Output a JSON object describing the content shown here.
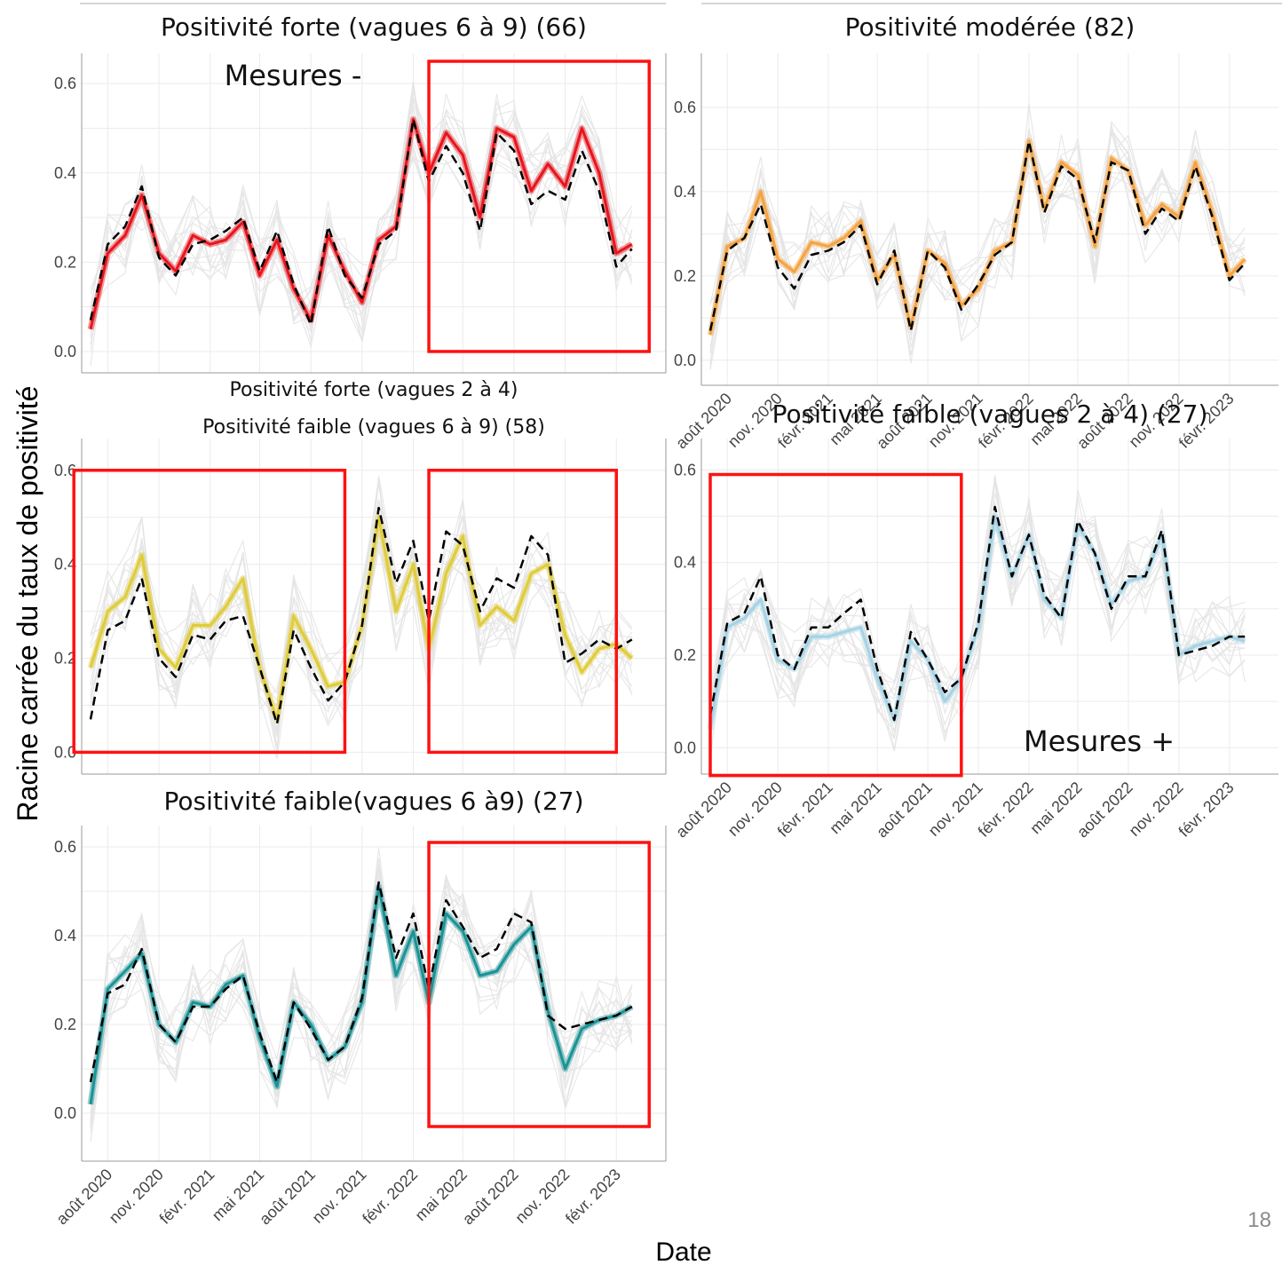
{
  "figure": {
    "y_label": "Racine carrée du taux de positivité",
    "x_label": "Date",
    "page_number": "18"
  },
  "chart_data": [
    {
      "type": "line",
      "title": "Positivité forte (vagues 6 à 9) (66)",
      "annotation": "Mesures -",
      "color": "#e8141c",
      "ylim": [
        -0.02,
        0.66
      ],
      "yticks": [
        "0.0",
        "0.2",
        "0.4",
        "0.6"
      ],
      "show_x_tick_labels": false,
      "highlight_boxes": [
        {
          "x0": "2022-03",
          "x1": "2023-04",
          "y0": 0.0,
          "y1": 0.65
        }
      ],
      "series": [
        {
          "x": [
            "2020-07-01",
            "2020-08-01",
            "2020-09-01",
            "2020-10-01",
            "2020-11-01",
            "2020-12-01",
            "2021-01-01",
            "2021-02-01",
            "2021-03-01",
            "2021-04-01",
            "2021-05-01",
            "2021-06-01",
            "2021-07-01",
            "2021-08-01",
            "2021-09-01",
            "2021-10-01",
            "2021-11-01",
            "2021-12-01",
            "2022-01-01",
            "2022-02-01",
            "2022-03-01",
            "2022-04-01",
            "2022-05-01",
            "2022-06-01",
            "2022-07-01",
            "2022-08-01",
            "2022-09-01",
            "2022-10-01",
            "2022-11-01",
            "2022-12-01",
            "2023-01-01",
            "2023-02-01",
            "2023-03-01"
          ],
          "y": [
            0.05,
            0.22,
            0.26,
            0.35,
            0.22,
            0.18,
            0.26,
            0.24,
            0.25,
            0.29,
            0.17,
            0.25,
            0.14,
            0.07,
            0.26,
            0.18,
            0.11,
            0.25,
            0.28,
            0.52,
            0.4,
            0.49,
            0.44,
            0.3,
            0.5,
            0.48,
            0.36,
            0.42,
            0.37,
            0.5,
            0.4,
            0.22,
            0.24
          ]
        },
        {
          "name": "",
          "dashed": true,
          "x": [
            "2020-07-01",
            "2020-08-01",
            "2020-09-01",
            "2020-10-01",
            "2020-11-01",
            "2020-12-01",
            "2021-01-01",
            "2021-02-01",
            "2021-03-01",
            "2021-04-01",
            "2021-05-01",
            "2021-06-01",
            "2021-07-01",
            "2021-08-01",
            "2021-09-01",
            "2021-10-01",
            "2021-11-01",
            "2021-12-01",
            "2022-01-01",
            "2022-02-01",
            "2022-03-01",
            "2022-04-01",
            "2022-05-01",
            "2022-06-01",
            "2022-07-01",
            "2022-08-01",
            "2022-09-01",
            "2022-10-01",
            "2022-11-01",
            "2022-12-01",
            "2023-01-01",
            "2023-02-01",
            "2023-03-01"
          ],
          "y": [
            0.07,
            0.24,
            0.28,
            0.37,
            0.21,
            0.17,
            0.24,
            0.25,
            0.27,
            0.3,
            0.18,
            0.27,
            0.15,
            0.06,
            0.28,
            0.17,
            0.12,
            0.24,
            0.27,
            0.52,
            0.38,
            0.46,
            0.4,
            0.27,
            0.49,
            0.45,
            0.33,
            0.36,
            0.34,
            0.45,
            0.36,
            0.19,
            0.23
          ]
        }
      ]
    },
    {
      "type": "line",
      "title": "Positivité modérée (82)",
      "color": "#f5a341",
      "ylim": [
        -0.03,
        0.72
      ],
      "yticks": [
        "0.0",
        "0.2",
        "0.4",
        "0.6"
      ],
      "show_x_tick_labels": true,
      "xtick_labels": [
        "août 2020",
        "nov. 2020",
        "févr. 2021",
        "mai 2021",
        "août 2021",
        "nov. 2021",
        "févr. 2022",
        "mai 2022",
        "août 2022",
        "nov. 2022",
        "févr. 2023"
      ],
      "series": [
        {
          "x": [
            "2020-07-01",
            "2020-08-01",
            "2020-09-01",
            "2020-10-01",
            "2020-11-01",
            "2020-12-01",
            "2021-01-01",
            "2021-02-01",
            "2021-03-01",
            "2021-04-01",
            "2021-05-01",
            "2021-06-01",
            "2021-07-01",
            "2021-08-01",
            "2021-09-01",
            "2021-10-01",
            "2021-11-01",
            "2021-12-01",
            "2022-01-01",
            "2022-02-01",
            "2022-03-01",
            "2022-04-01",
            "2022-05-01",
            "2022-06-01",
            "2022-07-01",
            "2022-08-01",
            "2022-09-01",
            "2022-10-01",
            "2022-11-01",
            "2022-12-01",
            "2023-01-01",
            "2023-02-01",
            "2023-03-01"
          ],
          "y": [
            0.06,
            0.27,
            0.29,
            0.4,
            0.24,
            0.21,
            0.28,
            0.27,
            0.29,
            0.33,
            0.19,
            0.25,
            0.08,
            0.26,
            0.23,
            0.13,
            0.17,
            0.26,
            0.28,
            0.52,
            0.36,
            0.47,
            0.44,
            0.27,
            0.48,
            0.45,
            0.32,
            0.37,
            0.34,
            0.47,
            0.35,
            0.2,
            0.24
          ]
        },
        {
          "dashed": true,
          "x": [
            "2020-07-01",
            "2020-08-01",
            "2020-09-01",
            "2020-10-01",
            "2020-11-01",
            "2020-12-01",
            "2021-01-01",
            "2021-02-01",
            "2021-03-01",
            "2021-04-01",
            "2021-05-01",
            "2021-06-01",
            "2021-07-01",
            "2021-08-01",
            "2021-09-01",
            "2021-10-01",
            "2021-11-01",
            "2021-12-01",
            "2022-01-01",
            "2022-02-01",
            "2022-03-01",
            "2022-04-01",
            "2022-05-01",
            "2022-06-01",
            "2022-07-01",
            "2022-08-01",
            "2022-09-01",
            "2022-10-01",
            "2022-11-01",
            "2022-12-01",
            "2023-01-01",
            "2023-02-01",
            "2023-03-01"
          ],
          "y": [
            0.07,
            0.26,
            0.29,
            0.37,
            0.22,
            0.17,
            0.25,
            0.26,
            0.28,
            0.32,
            0.18,
            0.26,
            0.07,
            0.26,
            0.22,
            0.12,
            0.18,
            0.25,
            0.28,
            0.52,
            0.35,
            0.46,
            0.43,
            0.28,
            0.47,
            0.45,
            0.3,
            0.36,
            0.33,
            0.46,
            0.34,
            0.19,
            0.23
          ]
        }
      ]
    },
    {
      "type": "line",
      "title": "Positivité forte (vagues 2 à 4)",
      "subtitle": "Positivité faible (vagues 6 à 9) (58)",
      "color": "#dfcc3b",
      "ylim": [
        -0.02,
        0.66
      ],
      "yticks": [
        "0.0",
        "0.2",
        "0.4",
        "0.6"
      ],
      "show_x_tick_labels": false,
      "highlight_boxes": [
        {
          "x0": "2020-06",
          "x1": "2021-10",
          "y0": 0.0,
          "y1": 0.6
        },
        {
          "x0": "2022-03",
          "x1": "2023-02",
          "y0": 0.0,
          "y1": 0.6
        }
      ],
      "series": [
        {
          "x": [
            "2020-07-01",
            "2020-08-01",
            "2020-09-01",
            "2020-10-01",
            "2020-11-01",
            "2020-12-01",
            "2021-01-01",
            "2021-02-01",
            "2021-03-01",
            "2021-04-01",
            "2021-05-01",
            "2021-06-01",
            "2021-07-01",
            "2021-08-01",
            "2021-09-01",
            "2021-10-01",
            "2021-11-01",
            "2021-12-01",
            "2022-01-01",
            "2022-02-01",
            "2022-03-01",
            "2022-04-01",
            "2022-05-01",
            "2022-06-01",
            "2022-07-01",
            "2022-08-01",
            "2022-09-01",
            "2022-10-01",
            "2022-11-01",
            "2022-12-01",
            "2023-01-01",
            "2023-02-01",
            "2023-03-01"
          ],
          "y": [
            0.18,
            0.3,
            0.33,
            0.42,
            0.22,
            0.18,
            0.27,
            0.27,
            0.31,
            0.37,
            0.18,
            0.07,
            0.29,
            0.22,
            0.14,
            0.15,
            0.27,
            0.5,
            0.3,
            0.4,
            0.22,
            0.38,
            0.46,
            0.27,
            0.31,
            0.28,
            0.38,
            0.4,
            0.25,
            0.17,
            0.22,
            0.23,
            0.2
          ]
        },
        {
          "dashed": true,
          "x": [
            "2020-07-01",
            "2020-08-01",
            "2020-09-01",
            "2020-10-01",
            "2020-11-01",
            "2020-12-01",
            "2021-01-01",
            "2021-02-01",
            "2021-03-01",
            "2021-04-01",
            "2021-05-01",
            "2021-06-01",
            "2021-07-01",
            "2021-08-01",
            "2021-09-01",
            "2021-10-01",
            "2021-11-01",
            "2021-12-01",
            "2022-01-01",
            "2022-02-01",
            "2022-03-01",
            "2022-04-01",
            "2022-05-01",
            "2022-06-01",
            "2022-07-01",
            "2022-08-01",
            "2022-09-01",
            "2022-10-01",
            "2022-11-01",
            "2022-12-01",
            "2023-01-01",
            "2023-02-01",
            "2023-03-01"
          ],
          "y": [
            0.07,
            0.26,
            0.28,
            0.37,
            0.2,
            0.16,
            0.25,
            0.24,
            0.28,
            0.29,
            0.18,
            0.06,
            0.26,
            0.18,
            0.11,
            0.15,
            0.27,
            0.52,
            0.36,
            0.45,
            0.28,
            0.47,
            0.44,
            0.3,
            0.37,
            0.35,
            0.46,
            0.42,
            0.19,
            0.21,
            0.24,
            0.22,
            0.24
          ]
        }
      ]
    },
    {
      "type": "line",
      "title": "Positivité faible (vagues 2 à 4) (27)",
      "annotation": "Mesures +",
      "color": "#a5d3e4",
      "ylim": [
        -0.03,
        0.66
      ],
      "yticks": [
        "0.0",
        "0.2",
        "0.4",
        "0.6"
      ],
      "show_x_tick_labels": true,
      "xtick_labels": [
        "août 2020",
        "nov. 2020",
        "févr. 2021",
        "mai 2021",
        "août 2021",
        "nov. 2021",
        "févr. 2022",
        "mai 2022",
        "août 2022",
        "nov. 2022",
        "févr. 2023"
      ],
      "highlight_boxes": [
        {
          "x0": "2020-07",
          "x1": "2021-10",
          "y0": -0.06,
          "y1": 0.59
        }
      ],
      "series": [
        {
          "x": [
            "2020-07-01",
            "2020-08-01",
            "2020-09-01",
            "2020-10-01",
            "2020-11-01",
            "2020-12-01",
            "2021-01-01",
            "2021-02-01",
            "2021-03-01",
            "2021-04-01",
            "2021-05-01",
            "2021-06-01",
            "2021-07-01",
            "2021-08-01",
            "2021-09-01",
            "2021-10-01",
            "2021-11-01",
            "2021-12-01",
            "2022-01-01",
            "2022-02-01",
            "2022-03-01",
            "2022-04-01",
            "2022-05-01",
            "2022-06-01",
            "2022-07-01",
            "2022-08-01",
            "2022-09-01",
            "2022-10-01",
            "2022-11-01",
            "2022-12-01",
            "2023-01-01",
            "2023-02-01",
            "2023-03-01"
          ],
          "y": [
            0.04,
            0.26,
            0.28,
            0.32,
            0.19,
            0.17,
            0.24,
            0.24,
            0.25,
            0.26,
            0.15,
            0.06,
            0.23,
            0.19,
            0.1,
            0.15,
            0.26,
            0.5,
            0.37,
            0.46,
            0.32,
            0.28,
            0.48,
            0.42,
            0.31,
            0.36,
            0.37,
            0.46,
            0.2,
            0.22,
            0.23,
            0.24,
            0.23
          ]
        },
        {
          "dashed": true,
          "x": [
            "2020-07-01",
            "2020-08-01",
            "2020-09-01",
            "2020-10-01",
            "2020-11-01",
            "2020-12-01",
            "2021-01-01",
            "2021-02-01",
            "2021-03-01",
            "2021-04-01",
            "2021-05-01",
            "2021-06-01",
            "2021-07-01",
            "2021-08-01",
            "2021-09-01",
            "2021-10-01",
            "2021-11-01",
            "2021-12-01",
            "2022-01-01",
            "2022-02-01",
            "2022-03-01",
            "2022-04-01",
            "2022-05-01",
            "2022-06-01",
            "2022-07-01",
            "2022-08-01",
            "2022-09-01",
            "2022-10-01",
            "2022-11-01",
            "2022-12-01",
            "2023-01-01",
            "2023-02-01",
            "2023-03-01"
          ],
          "y": [
            0.07,
            0.27,
            0.29,
            0.37,
            0.2,
            0.17,
            0.26,
            0.26,
            0.29,
            0.32,
            0.17,
            0.06,
            0.25,
            0.19,
            0.12,
            0.15,
            0.27,
            0.52,
            0.37,
            0.46,
            0.33,
            0.28,
            0.49,
            0.42,
            0.3,
            0.37,
            0.37,
            0.47,
            0.2,
            0.21,
            0.22,
            0.24,
            0.24
          ]
        }
      ]
    },
    {
      "type": "line",
      "title": "Positivité faible(vagues 6 à9) (27)",
      "color": "#1a9396",
      "ylim": [
        -0.08,
        0.64
      ],
      "yticks": [
        "0.0",
        "0.2",
        "0.4",
        "0.6"
      ],
      "show_x_tick_labels": true,
      "xtick_labels": [
        "août 2020",
        "nov. 2020",
        "févr. 2021",
        "mai 2021",
        "août 2021",
        "nov. 2021",
        "févr. 2022",
        "mai 2022",
        "août 2022",
        "nov. 2022",
        "févr. 2023"
      ],
      "highlight_boxes": [
        {
          "x0": "2022-03",
          "x1": "2023-04",
          "y0": -0.03,
          "y1": 0.61
        }
      ],
      "series": [
        {
          "x": [
            "2020-07-01",
            "2020-08-01",
            "2020-09-01",
            "2020-10-01",
            "2020-11-01",
            "2020-12-01",
            "2021-01-01",
            "2021-02-01",
            "2021-03-01",
            "2021-04-01",
            "2021-05-01",
            "2021-06-01",
            "2021-07-01",
            "2021-08-01",
            "2021-09-01",
            "2021-10-01",
            "2021-11-01",
            "2021-12-01",
            "2022-01-01",
            "2022-02-01",
            "2022-03-01",
            "2022-04-01",
            "2022-05-01",
            "2022-06-01",
            "2022-07-01",
            "2022-08-01",
            "2022-09-01",
            "2022-10-01",
            "2022-11-01",
            "2022-12-01",
            "2023-01-01",
            "2023-02-01",
            "2023-03-01"
          ],
          "y": [
            0.02,
            0.28,
            0.32,
            0.36,
            0.2,
            0.16,
            0.25,
            0.24,
            0.29,
            0.31,
            0.17,
            0.06,
            0.25,
            0.2,
            0.12,
            0.15,
            0.25,
            0.51,
            0.31,
            0.41,
            0.25,
            0.45,
            0.41,
            0.31,
            0.32,
            0.38,
            0.42,
            0.23,
            0.1,
            0.19,
            0.21,
            0.22,
            0.24
          ]
        },
        {
          "dashed": true,
          "x": [
            "2020-07-01",
            "2020-08-01",
            "2020-09-01",
            "2020-10-01",
            "2020-11-01",
            "2020-12-01",
            "2021-01-01",
            "2021-02-01",
            "2021-03-01",
            "2021-04-01",
            "2021-05-01",
            "2021-06-01",
            "2021-07-01",
            "2021-08-01",
            "2021-09-01",
            "2021-10-01",
            "2021-11-01",
            "2021-12-01",
            "2022-01-01",
            "2022-02-01",
            "2022-03-01",
            "2022-04-01",
            "2022-05-01",
            "2022-06-01",
            "2022-07-01",
            "2022-08-01",
            "2022-09-01",
            "2022-10-01",
            "2022-11-01",
            "2022-12-01",
            "2023-01-01",
            "2023-02-01",
            "2023-03-01"
          ],
          "y": [
            0.07,
            0.27,
            0.29,
            0.37,
            0.2,
            0.16,
            0.24,
            0.24,
            0.28,
            0.31,
            0.18,
            0.07,
            0.25,
            0.19,
            0.12,
            0.15,
            0.26,
            0.52,
            0.35,
            0.45,
            0.28,
            0.48,
            0.42,
            0.35,
            0.37,
            0.45,
            0.43,
            0.22,
            0.19,
            0.2,
            0.21,
            0.22,
            0.24
          ]
        }
      ]
    }
  ]
}
